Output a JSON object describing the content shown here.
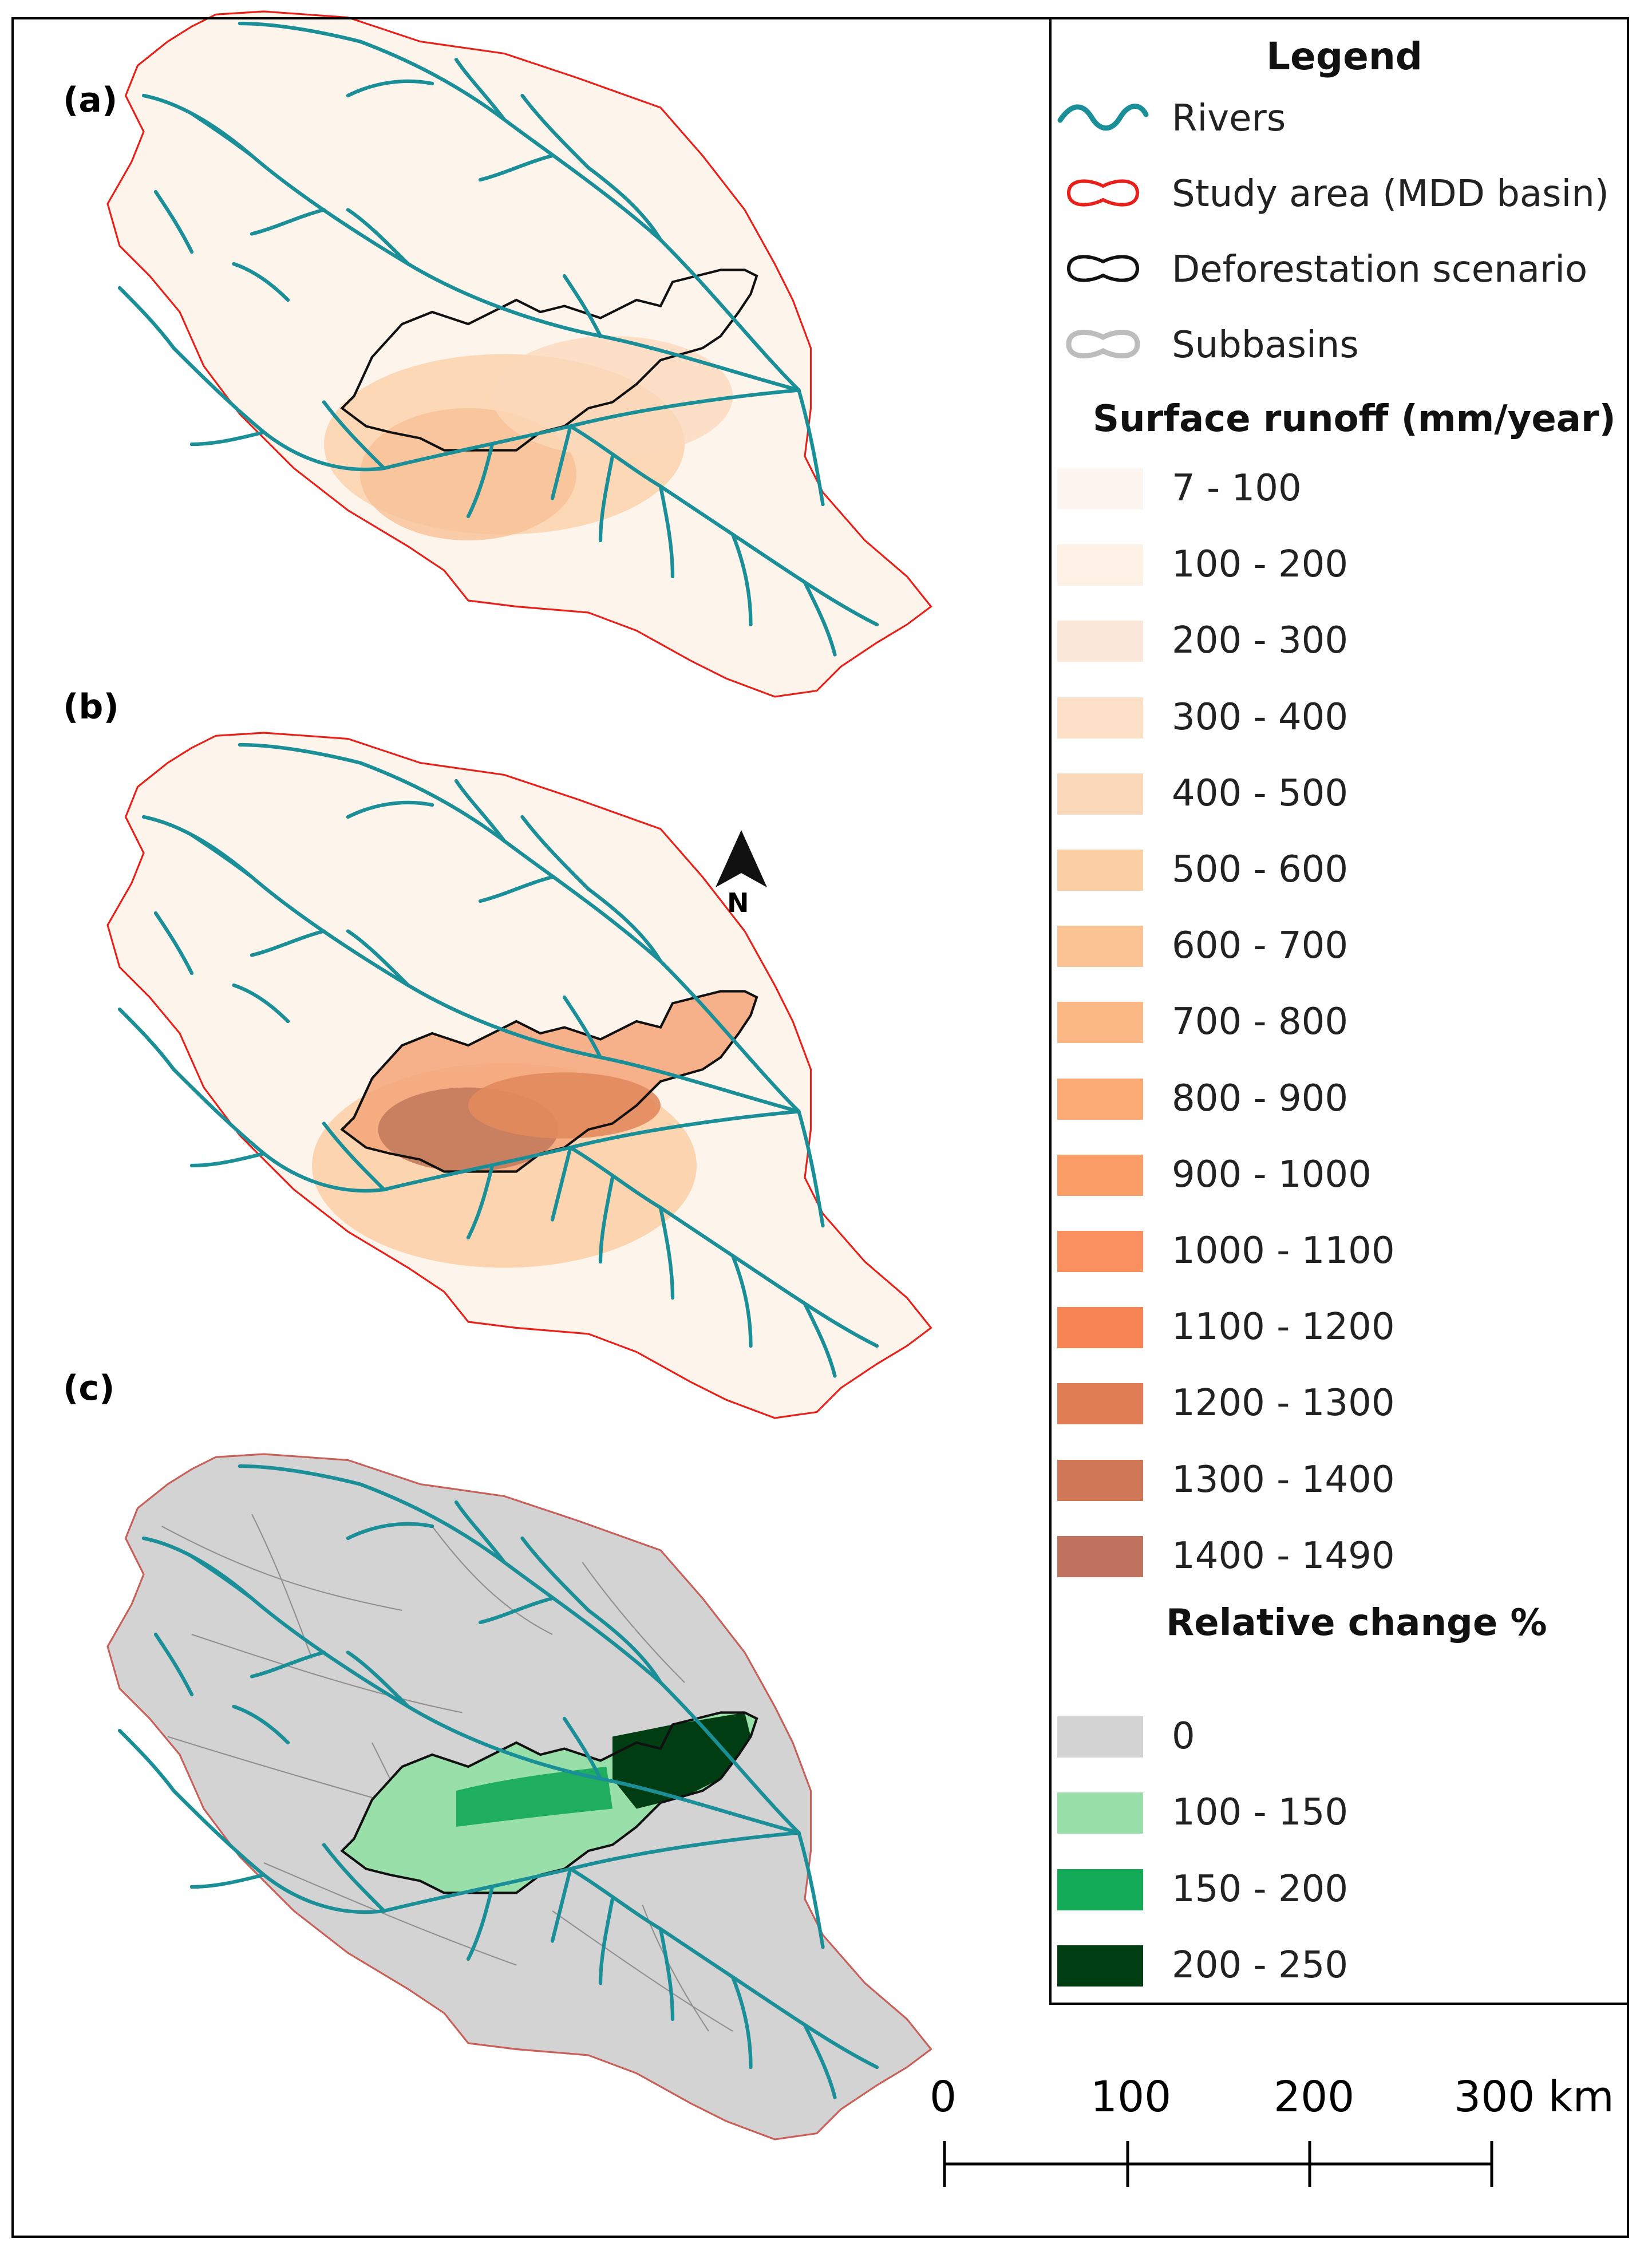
{
  "panels": {
    "a": "(a)",
    "b": "(b)",
    "c": "(c)"
  },
  "north_arrow": {
    "label": "N"
  },
  "legend": {
    "title": "Legend",
    "symbols": [
      {
        "label": "Rivers",
        "icon": "river-line-icon",
        "color": "#1b8f98"
      },
      {
        "label": "Study area (MDD basin)",
        "icon": "study-area-outline-icon",
        "color": "#e8201a"
      },
      {
        "label": "Deforestation scenario",
        "icon": "deforestation-outline-icon",
        "color": "#111111"
      },
      {
        "label": "Subbasins",
        "icon": "subbasin-outline-icon",
        "color": "#bdbdbd"
      }
    ],
    "runoff_title": "Surface runoff (mm/year)",
    "runoff_classes": [
      {
        "label": "7 - 100",
        "color": "#fdf5ef"
      },
      {
        "label": "100 - 200",
        "color": "#fdf0e5"
      },
      {
        "label": "200 - 300",
        "color": "#fce8da"
      },
      {
        "label": "300 - 400",
        "color": "#fce0c7"
      },
      {
        "label": "400 - 500",
        "color": "#fbd8b9"
      },
      {
        "label": "500 - 600",
        "color": "#fbcfa6"
      },
      {
        "label": "600 - 700",
        "color": "#fbc394"
      },
      {
        "label": "700 - 800",
        "color": "#fbb885"
      },
      {
        "label": "800 - 900",
        "color": "#fbaa76"
      },
      {
        "label": "900 - 1000",
        "color": "#fa9d66"
      },
      {
        "label": "1000 - 1100",
        "color": "#fa9060"
      },
      {
        "label": "1100 - 1200",
        "color": "#f78554"
      },
      {
        "label": "1200 - 1300",
        "color": "#e07d55"
      },
      {
        "label": "1300 - 1400",
        "color": "#d07758"
      },
      {
        "label": "1400 - 1490",
        "color": "#bf735f"
      }
    ],
    "change_title": "Relative change %",
    "change_classes": [
      {
        "label": "0",
        "color": "#d3d3d3"
      },
      {
        "label": "100 - 150",
        "color": "#98dfa9"
      },
      {
        "label": "150 - 200",
        "color": "#12a957"
      },
      {
        "label": "200 - 250",
        "color": "#003d13"
      }
    ]
  },
  "scale_bar": {
    "labels": [
      "0",
      "100",
      "200",
      "300 km"
    ]
  }
}
